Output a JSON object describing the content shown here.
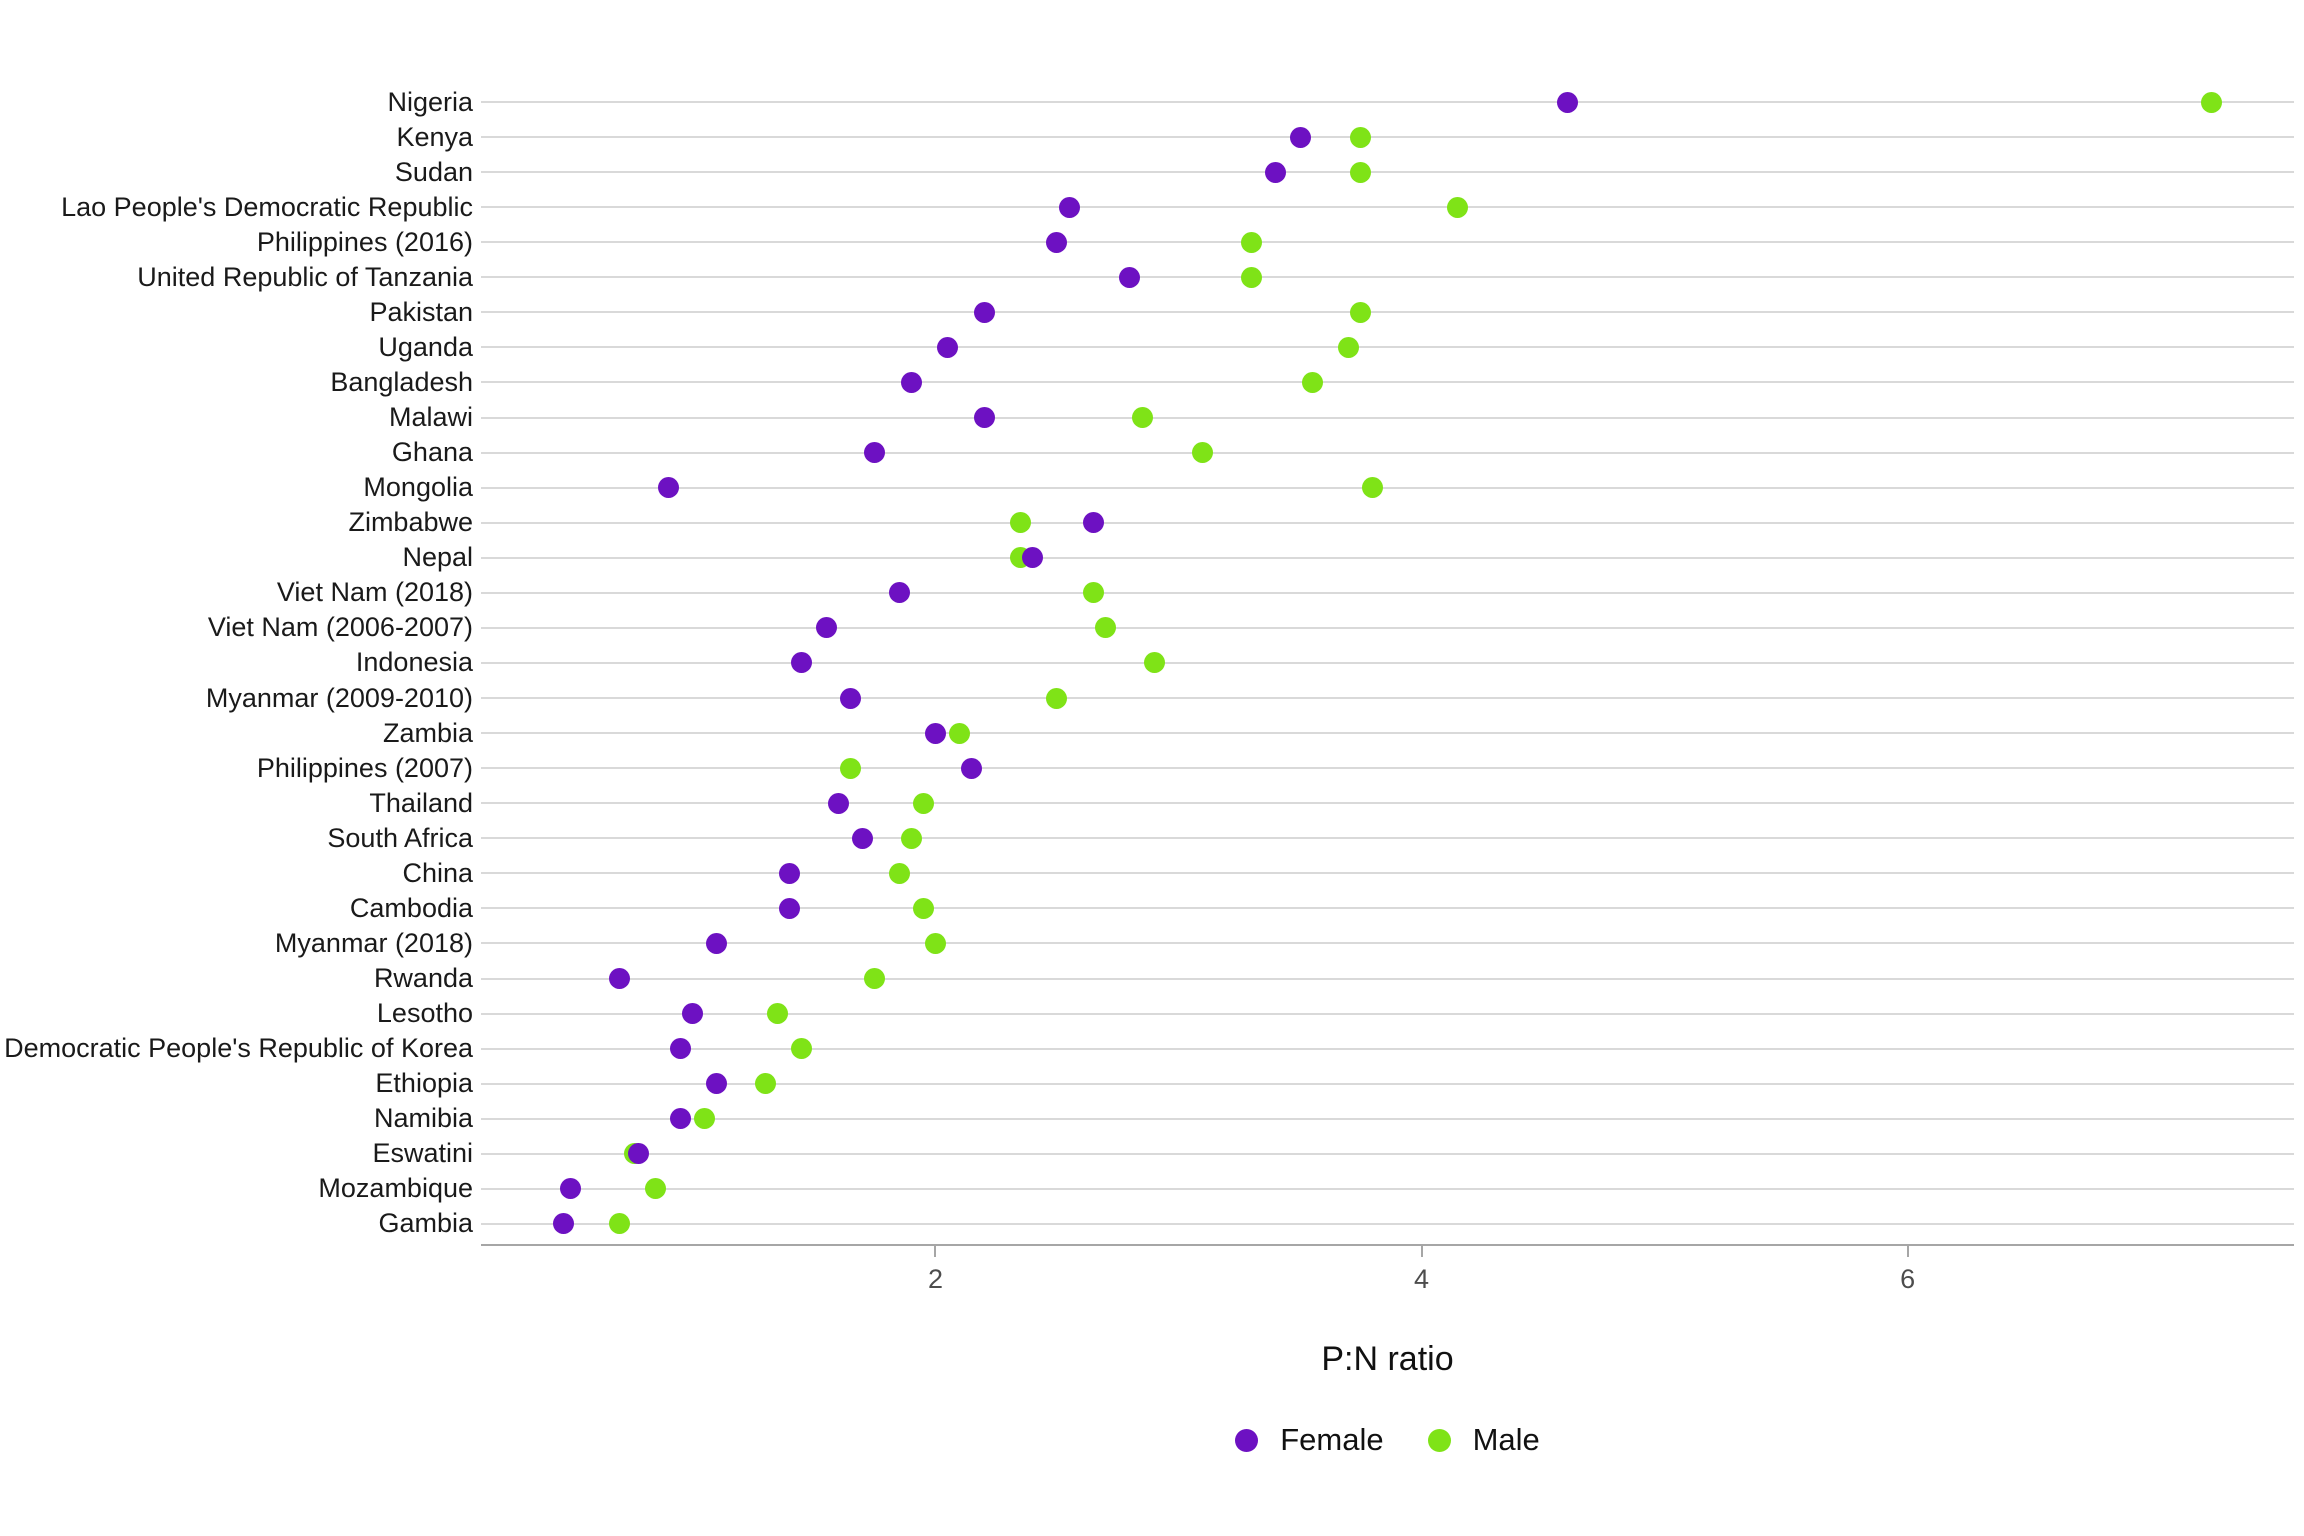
{
  "chart_data": {
    "type": "scatter",
    "subtype": "dot-plot",
    "title": "",
    "xlabel": "P:N ratio",
    "ylabel": "",
    "x_ticks": [
      "2",
      "4",
      "6"
    ],
    "x_tick_values": [
      2,
      4,
      6
    ],
    "xlim": [
      0.13,
      7.59
    ],
    "grid": "horizontal-only",
    "legend_position": "bottom-center",
    "categories": [
      "Nigeria",
      "Kenya",
      "Sudan",
      "Lao People's Democratic Republic",
      "Philippines (2016)",
      "United Republic of Tanzania",
      "Pakistan",
      "Uganda",
      "Bangladesh",
      "Malawi",
      "Ghana",
      "Mongolia",
      "Zimbabwe",
      "Nepal",
      "Viet Nam (2018)",
      "Viet Nam (2006-2007)",
      "Indonesia",
      "Myanmar (2009-2010)",
      "Zambia",
      "Philippines (2007)",
      "Thailand",
      "South Africa",
      "China",
      "Cambodia",
      "Myanmar (2018)",
      "Rwanda",
      "Lesotho",
      "Democratic People's Republic of Korea",
      "Ethiopia",
      "Namibia",
      "Eswatini",
      "Mozambique",
      "Gambia"
    ],
    "series": [
      {
        "name": "Male",
        "color": "#7fe317",
        "values": [
          7.25,
          3.75,
          3.75,
          4.15,
          3.3,
          3.3,
          3.75,
          3.7,
          3.55,
          2.85,
          3.1,
          3.8,
          2.35,
          2.35,
          2.65,
          2.7,
          2.9,
          2.5,
          2.1,
          1.65,
          1.95,
          1.9,
          1.85,
          1.95,
          2.0,
          1.75,
          1.35,
          1.45,
          1.3,
          1.05,
          0.76,
          0.85,
          0.7
        ]
      },
      {
        "name": "Female",
        "color": "#6d11c2",
        "values": [
          4.6,
          3.5,
          3.4,
          2.55,
          2.5,
          2.8,
          2.2,
          2.05,
          1.9,
          2.2,
          1.75,
          0.9,
          2.65,
          2.4,
          1.85,
          1.55,
          1.45,
          1.65,
          2.0,
          2.15,
          1.6,
          1.7,
          1.4,
          1.4,
          1.1,
          0.7,
          1.0,
          0.95,
          1.1,
          0.95,
          0.78,
          0.5,
          0.47
        ]
      }
    ],
    "legend_items": [
      {
        "label": "Female",
        "color": "#6d11c2"
      },
      {
        "label": "Male",
        "color": "#7fe317"
      }
    ],
    "style": {
      "gridline_color": "#d9d9d9",
      "axis_line_color": "#a6a6a6",
      "tick_label_color": "#4d4d4d",
      "label_color": "#1a1a1a",
      "background": "#ffffff"
    }
  }
}
